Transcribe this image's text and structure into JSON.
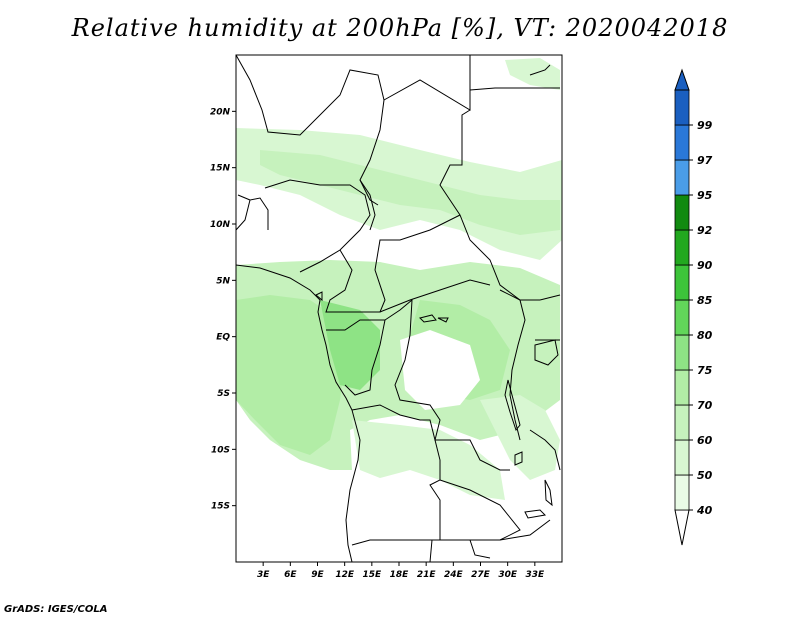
{
  "title": "Relative humidity at 200hPa [%], VT: 2020042018",
  "credit": "GrADS: IGES/COLA",
  "map": {
    "lon_range": [
      0,
      36
    ],
    "lat_range": [
      -20,
      25
    ],
    "lat_ticks": [
      {
        "value": 20,
        "label": "20N"
      },
      {
        "value": 15,
        "label": "15N"
      },
      {
        "value": 10,
        "label": "10N"
      },
      {
        "value": 5,
        "label": "5N"
      },
      {
        "value": 0,
        "label": "EQ"
      },
      {
        "value": -5,
        "label": "5S"
      },
      {
        "value": -10,
        "label": "10S"
      },
      {
        "value": -15,
        "label": "15S"
      }
    ],
    "lon_ticks": [
      {
        "value": 3,
        "label": "3E"
      },
      {
        "value": 6,
        "label": "6E"
      },
      {
        "value": 9,
        "label": "9E"
      },
      {
        "value": 12,
        "label": "12E"
      },
      {
        "value": 15,
        "label": "15E"
      },
      {
        "value": 18,
        "label": "18E"
      },
      {
        "value": 21,
        "label": "21E"
      },
      {
        "value": 24,
        "label": "24E"
      },
      {
        "value": 27,
        "label": "27E"
      },
      {
        "value": 30,
        "label": "30E"
      },
      {
        "value": 33,
        "label": "33E"
      }
    ]
  },
  "colorbar": {
    "levels": [
      {
        "label": "40",
        "color": "#e9fbe6"
      },
      {
        "label": "50",
        "color": "#d8f7d2"
      },
      {
        "label": "60",
        "color": "#c6f2bd"
      },
      {
        "label": "70",
        "color": "#b2eda6"
      },
      {
        "label": "75",
        "color": "#8ee385"
      },
      {
        "label": "80",
        "color": "#62d65a"
      },
      {
        "label": "85",
        "color": "#3dc43a"
      },
      {
        "label": "90",
        "color": "#22a81f"
      },
      {
        "label": "92",
        "color": "#118a10"
      },
      {
        "label": "95",
        "color": "#4a9de8"
      },
      {
        "label": "97",
        "color": "#2a78d8"
      },
      {
        "label": "99",
        "color": "#1a5fc0"
      }
    ],
    "below_color": "#ffffff",
    "above_color": "#1a5fc0"
  }
}
